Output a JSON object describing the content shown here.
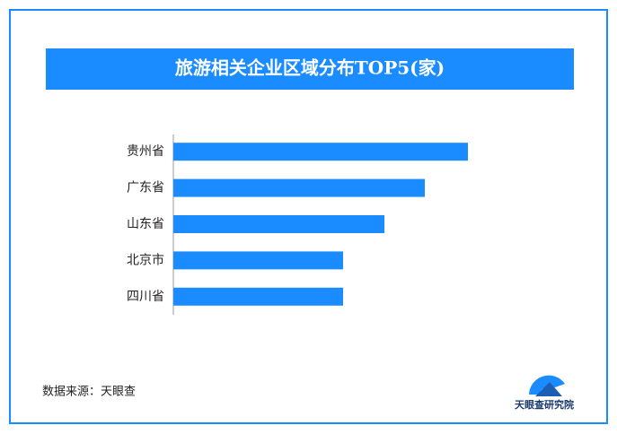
{
  "chart_data": {
    "type": "bar",
    "orientation": "horizontal",
    "title": "旅游相关企业区域分布TOP5(家)",
    "categories": [
      "贵州省",
      "广东省",
      "山东省",
      "北京市",
      "四川省"
    ],
    "values": [
      328,
      280,
      235,
      189,
      189
    ],
    "color": "#1a8cff",
    "source": "数据来源：天眼查",
    "logo_text": "天眼查研究院"
  }
}
